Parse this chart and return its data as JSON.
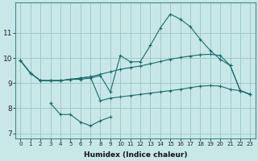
{
  "xlabel": "Humidex (Indice chaleur)",
  "ylabel": "",
  "background_color": "#c8e8e8",
  "grid_color": "#a0c8c8",
  "line_color": "#1a6b6b",
  "x": [
    0,
    1,
    2,
    3,
    4,
    5,
    6,
    7,
    8,
    9,
    10,
    11,
    12,
    13,
    14,
    15,
    16,
    17,
    18,
    19,
    20,
    21,
    22,
    23
  ],
  "line1": [
    9.9,
    9.4,
    9.1,
    9.1,
    9.1,
    9.15,
    9.15,
    9.2,
    9.3,
    8.65,
    10.1,
    9.85,
    9.85,
    10.5,
    11.2,
    11.75,
    11.55,
    11.25,
    10.75,
    10.3,
    9.95,
    9.7,
    8.7,
    8.55
  ],
  "line2": [
    9.9,
    9.4,
    9.1,
    9.1,
    9.1,
    9.15,
    9.2,
    9.25,
    9.35,
    9.45,
    9.55,
    9.62,
    9.68,
    9.77,
    9.86,
    9.95,
    10.02,
    10.08,
    10.13,
    10.15,
    10.1,
    9.7,
    8.7,
    8.55
  ],
  "line3": [
    9.9,
    9.4,
    9.1,
    9.1,
    9.1,
    9.15,
    9.2,
    9.25,
    8.3,
    8.4,
    8.45,
    8.5,
    8.55,
    8.6,
    8.65,
    8.7,
    8.75,
    8.82,
    8.88,
    8.9,
    8.88,
    8.75,
    8.7,
    8.55
  ],
  "line4_x": [
    3,
    4,
    5,
    6,
    7,
    8,
    9
  ],
  "line4_y": [
    8.2,
    7.75,
    7.75,
    7.45,
    7.3,
    7.5,
    7.65
  ],
  "ylim": [
    6.8,
    12.2
  ],
  "yticks": [
    7,
    8,
    9,
    10,
    11
  ],
  "xticks": [
    0,
    1,
    2,
    3,
    4,
    5,
    6,
    7,
    8,
    9,
    10,
    11,
    12,
    13,
    14,
    15,
    16,
    17,
    18,
    19,
    20,
    21,
    22,
    23
  ]
}
